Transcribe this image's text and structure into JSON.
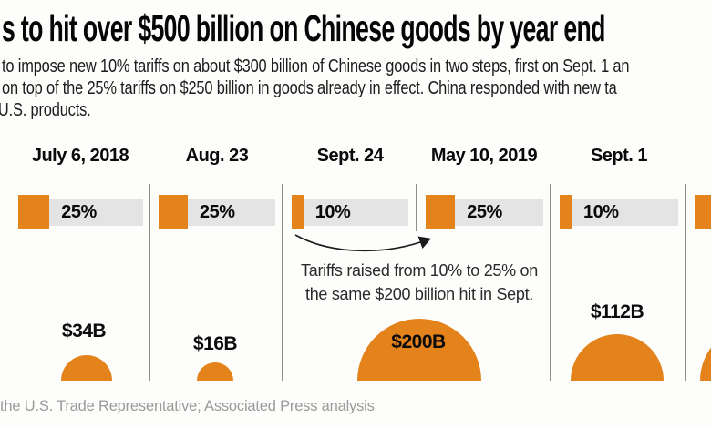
{
  "title": "s to hit over $500 billion on Chinese goods by year end",
  "subtitle_lines": [
    "to impose new 10% tariffs on about $300 billion of Chinese goods in two steps, first on Sept. 1 an",
    "on top of the 25% tariffs on $250 billion in goods already in effect. China responded with new ta",
    "U.S. products."
  ],
  "annotation_lines": [
    "Tariffs raised from 10% to 25% on",
    "the same $200 billion hit in Sept."
  ],
  "source": "the U.S. Trade Representative; Associated Press analysis",
  "colors": {
    "accent_orange": "#E4821C",
    "track_gray": "#E4E4E4",
    "divider_gray": "#8F8F8F",
    "text_dark": "#0a0a0a",
    "annotation_gray": "#2b2b2b",
    "source_gray": "#9A9A9A"
  },
  "chart_data": {
    "type": "bar",
    "title": "s to hit over $500 billion on Chinese goods by year end",
    "value_encoding": "orange bar fill = tariff rate (% of full gray track); orange semicircle area = value of goods hit, billions USD",
    "grid": false,
    "legend_position": "none",
    "cropped_partial_column_on_right": true,
    "columns": [
      {
        "date": "July 6, 2018",
        "rate_label": "25%",
        "rate_pct": 25,
        "goods_value": "$34B",
        "value_billions_usd": 34,
        "circle_radius_px": 28
      },
      {
        "date": "Aug. 23",
        "rate_label": "25%",
        "rate_pct": 25,
        "goods_value": "$16B",
        "value_billions_usd": 16,
        "circle_radius_px": 20
      },
      {
        "date": "Sept. 24",
        "rate_label": "10%",
        "rate_pct": 10,
        "goods_value": "$200B",
        "value_billions_usd": 200,
        "circle_radius_px": 68,
        "shared_circle_with_next": true
      },
      {
        "date": "May 10, 2019",
        "rate_label": "25%",
        "rate_pct": 25,
        "goods_value": "$200B",
        "value_billions_usd": 200,
        "circle_radius_px": 68,
        "shared_circle_with_prev": true
      },
      {
        "date": "Sept. 1",
        "rate_label": "10%",
        "rate_pct": 10,
        "goods_value": "$112B",
        "value_billions_usd": 112,
        "circle_radius_px": 51
      }
    ],
    "annotation": "Tariffs raised from 10% to 25% on the same $200 billion hit in Sept."
  }
}
